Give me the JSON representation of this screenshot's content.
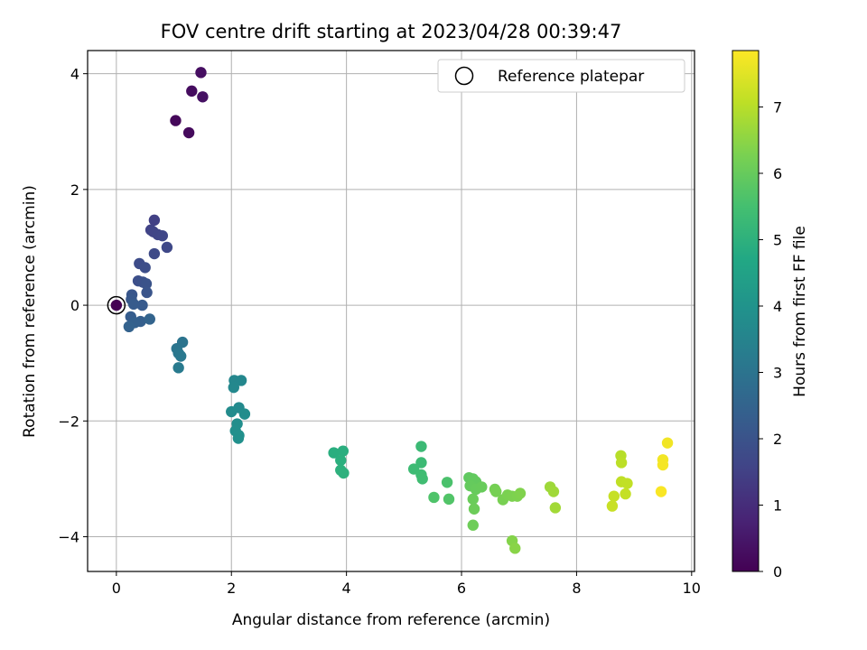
{
  "chart_data": {
    "type": "scatter",
    "title": "FOV centre drift starting at 2023/04/28 00:39:47",
    "xlabel": "Angular distance from reference (arcmin)",
    "ylabel": "Rotation from reference (arcmin)",
    "xlim": [
      -0.5,
      10.05
    ],
    "ylim": [
      -4.6,
      4.4
    ],
    "x_ticks": [
      0,
      2,
      4,
      6,
      8,
      10
    ],
    "y_ticks": [
      -4,
      -2,
      0,
      2,
      4
    ],
    "grid": true,
    "legend": {
      "placement": "top-right",
      "entries": [
        "Reference platepar"
      ]
    },
    "reference_point": {
      "x": 0,
      "y": 0,
      "label": "Reference platepar"
    },
    "colorbar": {
      "label": "Hours from first FF file",
      "colormap": "viridis",
      "range": [
        0,
        7.85
      ],
      "ticks": [
        0,
        1,
        2,
        3,
        4,
        5,
        6,
        7
      ]
    },
    "points": [
      {
        "x": 0.0,
        "y": 0.0,
        "h": 0.0
      },
      {
        "x": 1.03,
        "y": 3.19,
        "h": 0.15
      },
      {
        "x": 1.26,
        "y": 2.98,
        "h": 0.2
      },
      {
        "x": 1.31,
        "y": 3.7,
        "h": 0.25
      },
      {
        "x": 1.47,
        "y": 4.02,
        "h": 0.3
      },
      {
        "x": 1.5,
        "y": 3.6,
        "h": 0.35
      },
      {
        "x": 0.66,
        "y": 1.47,
        "h": 1.5
      },
      {
        "x": 0.6,
        "y": 1.3,
        "h": 1.55
      },
      {
        "x": 0.64,
        "y": 1.27,
        "h": 1.6
      },
      {
        "x": 0.72,
        "y": 1.22,
        "h": 1.62
      },
      {
        "x": 0.8,
        "y": 1.2,
        "h": 1.65
      },
      {
        "x": 0.88,
        "y": 1.0,
        "h": 1.7
      },
      {
        "x": 0.66,
        "y": 0.89,
        "h": 1.75
      },
      {
        "x": 0.4,
        "y": 0.72,
        "h": 1.8
      },
      {
        "x": 0.5,
        "y": 0.65,
        "h": 1.85
      },
      {
        "x": 0.38,
        "y": 0.42,
        "h": 1.9
      },
      {
        "x": 0.46,
        "y": 0.4,
        "h": 1.95
      },
      {
        "x": 0.52,
        "y": 0.37,
        "h": 2.0
      },
      {
        "x": 0.53,
        "y": 0.22,
        "h": 2.05
      },
      {
        "x": 0.27,
        "y": 0.18,
        "h": 2.1
      },
      {
        "x": 0.26,
        "y": 0.1,
        "h": 2.15
      },
      {
        "x": 0.45,
        "y": 0.0,
        "h": 2.2
      },
      {
        "x": 0.3,
        "y": 0.02,
        "h": 2.25
      },
      {
        "x": 0.25,
        "y": -0.2,
        "h": 2.3
      },
      {
        "x": 0.42,
        "y": -0.28,
        "h": 2.35
      },
      {
        "x": 0.32,
        "y": -0.3,
        "h": 2.4
      },
      {
        "x": 0.22,
        "y": -0.37,
        "h": 2.45
      },
      {
        "x": 0.58,
        "y": -0.24,
        "h": 2.5
      },
      {
        "x": 1.15,
        "y": -0.64,
        "h": 3.0
      },
      {
        "x": 1.05,
        "y": -0.75,
        "h": 3.05
      },
      {
        "x": 1.08,
        "y": -0.83,
        "h": 3.1
      },
      {
        "x": 1.12,
        "y": -0.88,
        "h": 3.15
      },
      {
        "x": 1.08,
        "y": -1.08,
        "h": 3.2
      },
      {
        "x": 2.05,
        "y": -1.3,
        "h": 3.6
      },
      {
        "x": 2.17,
        "y": -1.3,
        "h": 3.62
      },
      {
        "x": 2.04,
        "y": -1.42,
        "h": 3.65
      },
      {
        "x": 2.13,
        "y": -1.77,
        "h": 3.7
      },
      {
        "x": 2.0,
        "y": -1.84,
        "h": 3.75
      },
      {
        "x": 2.23,
        "y": -1.88,
        "h": 3.8
      },
      {
        "x": 2.1,
        "y": -2.05,
        "h": 3.82
      },
      {
        "x": 2.07,
        "y": -2.17,
        "h": 3.85
      },
      {
        "x": 2.13,
        "y": -2.25,
        "h": 3.88
      },
      {
        "x": 2.12,
        "y": -2.3,
        "h": 3.9
      },
      {
        "x": 3.78,
        "y": -2.55,
        "h": 4.9
      },
      {
        "x": 3.94,
        "y": -2.52,
        "h": 4.92
      },
      {
        "x": 3.9,
        "y": -2.68,
        "h": 4.95
      },
      {
        "x": 3.9,
        "y": -2.85,
        "h": 4.98
      },
      {
        "x": 3.95,
        "y": -2.9,
        "h": 5.0
      },
      {
        "x": 5.3,
        "y": -2.44,
        "h": 5.3
      },
      {
        "x": 5.3,
        "y": -2.72,
        "h": 5.32
      },
      {
        "x": 5.17,
        "y": -2.83,
        "h": 5.35
      },
      {
        "x": 5.3,
        "y": -2.93,
        "h": 5.38
      },
      {
        "x": 5.32,
        "y": -3.0,
        "h": 5.4
      },
      {
        "x": 5.75,
        "y": -3.06,
        "h": 5.6
      },
      {
        "x": 5.52,
        "y": -3.32,
        "h": 5.65
      },
      {
        "x": 5.78,
        "y": -3.35,
        "h": 5.7
      },
      {
        "x": 6.13,
        "y": -2.98,
        "h": 5.9
      },
      {
        "x": 6.2,
        "y": -3.0,
        "h": 5.92
      },
      {
        "x": 6.25,
        "y": -3.05,
        "h": 5.95
      },
      {
        "x": 6.15,
        "y": -3.12,
        "h": 5.98
      },
      {
        "x": 6.25,
        "y": -3.18,
        "h": 6.0
      },
      {
        "x": 6.35,
        "y": -3.14,
        "h": 6.02
      },
      {
        "x": 6.2,
        "y": -3.35,
        "h": 6.05
      },
      {
        "x": 6.22,
        "y": -3.52,
        "h": 6.08
      },
      {
        "x": 6.2,
        "y": -3.8,
        "h": 6.1
      },
      {
        "x": 6.58,
        "y": -3.18,
        "h": 6.2
      },
      {
        "x": 6.6,
        "y": -3.22,
        "h": 6.22
      },
      {
        "x": 6.72,
        "y": -3.36,
        "h": 6.25
      },
      {
        "x": 6.8,
        "y": -3.28,
        "h": 6.28
      },
      {
        "x": 6.88,
        "y": -3.3,
        "h": 6.3
      },
      {
        "x": 6.97,
        "y": -3.3,
        "h": 6.32
      },
      {
        "x": 7.02,
        "y": -3.25,
        "h": 6.35
      },
      {
        "x": 6.88,
        "y": -4.07,
        "h": 6.4
      },
      {
        "x": 6.93,
        "y": -4.2,
        "h": 6.45
      },
      {
        "x": 7.54,
        "y": -3.14,
        "h": 6.7
      },
      {
        "x": 7.6,
        "y": -3.22,
        "h": 6.72
      },
      {
        "x": 7.63,
        "y": -3.5,
        "h": 6.75
      },
      {
        "x": 8.77,
        "y": -2.6,
        "h": 7.0
      },
      {
        "x": 8.78,
        "y": -2.72,
        "h": 7.05
      },
      {
        "x": 8.78,
        "y": -3.05,
        "h": 7.1
      },
      {
        "x": 8.88,
        "y": -3.08,
        "h": 7.12
      },
      {
        "x": 8.85,
        "y": -3.26,
        "h": 7.15
      },
      {
        "x": 8.65,
        "y": -3.3,
        "h": 7.18
      },
      {
        "x": 8.62,
        "y": -3.47,
        "h": 7.2
      },
      {
        "x": 9.58,
        "y": -2.38,
        "h": 7.7
      },
      {
        "x": 9.5,
        "y": -2.67,
        "h": 7.72
      },
      {
        "x": 9.5,
        "y": -2.76,
        "h": 7.75
      },
      {
        "x": 9.47,
        "y": -3.22,
        "h": 7.8
      }
    ]
  }
}
